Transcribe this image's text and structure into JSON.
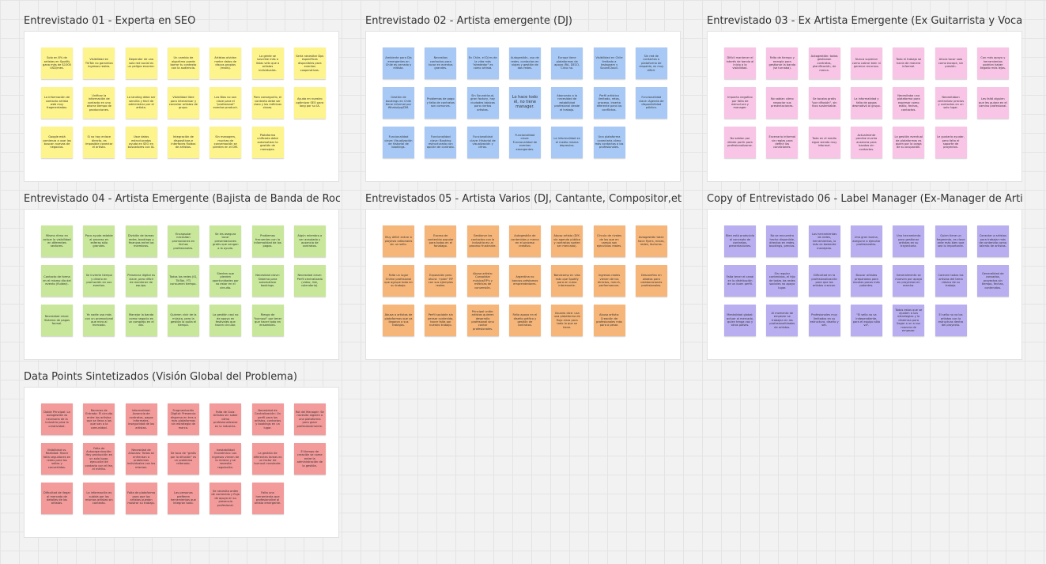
{
  "colors": {
    "yellow": "#fdf48d",
    "blue": "#a8c9f5",
    "pink": "#f8c5e6",
    "green": "#c8e79b",
    "orange": "#f6b67a",
    "purple": "#b9aef0",
    "red": "#f39a9a"
  },
  "frames": [
    {
      "title": "Entrevistado 01 - Experta en SEO",
      "color": "yellow",
      "notes": [
        "Solo en 8% de artistas en Spotify gana más de $1000 USD/mes.",
        "Visibilidad en TikTok no garantiza ingresos reales.",
        "Depender de una sola red social es un peligro enorme.",
        "Un cambio de algoritmo puede borrar tu contexto con la audiencia.",
        "Artistas olvidan meter datos de discos propios (mails).",
        "La gente se suscribe más a listas vets que a artistas individuales.",
        "Sería necesitar Dps específicos disponibles para eventos cooperativos.",
        "La información de contacto artista web muy fragmentados.",
        "Unificar la información de contacto en uno ahorra tiempo de producciones.",
        "La landing debe ser sencilla y fácil de administrar por el artista.",
        "Visibilidad libre para interactuar y conectar artistas de grupo.",
        "Las Bios no son clave para el \"profesional\" eventos producir.",
        "Para conseguirlo, el contexto debe ser claro y las métricas claras.",
        "Ayuda en nuestro optimizar SEO para long por su IA.",
        "Google está comienza a usar las buscan nuevas de negocios.",
        "Si no hay enlace directo, es imposible conectar el artista.",
        "Usar datos estructurados ayuda en SEO en buscadores con IA.",
        "Integración de dispositivos e interfaces fluidos de artistas.",
        "Sin managers, muchas de conversación se pierden en el DM.",
        "Plataforma unificada debe automatizar la gestión de mensajes."
      ]
    },
    {
      "title": "Entrevistado 02 - Artista emergente (DJ)",
      "color": "blue",
      "notes": [
        "Ambiente para Djs emergentes en Chile es cerrado y elitista.",
        "Necesitas contactos para tocar en eventos grandes.",
        "En Chile, el DJ es de la vida más \"alrededor\" es como artista.",
        "Autogestión, uso de redes, contactos en viajes y gestión de dos redes.",
        "Europa tiene plataformas de apoyo (RA, DECO, Circo no.",
        "Visibilidad en Chile limitada a Instagram y SoundCloud.",
        "Sin red de contactos o plataforma de respaldo, es muy difícil.",
        "Gestión de bookings en Chile tiene informal por WhatsApp/DM.",
        "Problemas de pago y falta de contratos son comunes.",
        "Sin Soundcloud, gran factory, hay ciudades básicas para ciertos artistas.",
        "Lo hace todo él, no tiene manager.",
        "Abonando a la necesidad de estabilidad profesional desde el trabajo.",
        "Perfil artístico limitado, retos, proceso, inserta diferente para los conflictos.",
        "Funcionalidad clave: Agenda de disponibilidad pública.",
        "Funcionalidad clave: Visualización de historial de bookings.",
        "Funcionalidad clave: Booking estructurado con opción de contrato.",
        "Funcionalidad clave: Historial de visualización y cifras.",
        "Funcionalidad clave: Funcionalidad de eventos emergentes.",
        "La informalidad en el medio misma depresiva.",
        "Una plataforma conectaría cómo más contactos a los profesionales."
      ]
    },
    {
      "title": "Entrevistado 03 - Ex Artista Emergente (Ex Guitarrista y Vocalista de Banda de Rock)",
      "color": "pink",
      "notes": [
        "Difícil mantener el interés de banda al inicio a la visibilidad.",
        "Falta de tiempo y energía para gestionar la banda (se turnaba).",
        "Autogestión: todos gestionan contratos, planificación, de marca.",
        "Nunca supieron como cobrar bien ni generar recursos.",
        "Todo el trabajo se hacía de manera informal.",
        "Ahora tocar solo como escape, sin presión.",
        "Con más apoyo y herramientas podrían haber llegado más lejos.",
        "Impacto negativo por falta de estructura y manager.",
        "No sabían cómo negociar sus presentaciones.",
        "Se tocaba gratis \"por difusión\", sin foco sustentable.",
        "La informalidad y falta de pagos desmotivó al grupo.",
        "Necesitaba una plataforma para expresar como estilo, fechas, contactos.",
        "Necesitaban centralizar precios y contactos en un solo lugar.",
        "Les faltó alguien que les guiara en el camino profesional.",
        "No sabían por dónde partir para profesionalizarse.",
        "Escenario informal sin reglas para definir las condiciones.",
        "Todo en el medio sigue siendo muy informal.",
        "Actualmente percibe mucha ausencia para bandas sin contactos.",
        "La gestión eventual de plataformas es quien por la carga de su ocupación.",
        "Le gustaría ayudar, pero falta el soporte de proyectos."
      ]
    },
    {
      "title": "Entrevistado 04 - Artista Emergente (Bajista de Banda de Rock)",
      "color": "green",
      "notes": [
        "Mismo ritmo en actuar la visibilidad en diferentes sectores.",
        "Poco ayuda estable al proceso en esferas sólo grandes.",
        "División de tareas: redes, bookings y finanzas entre los miembros.",
        "Encapsular necesitan promociones en fechas profesionales.",
        "Se les asegura tocar presentaciones gratis que vengan a la ayuda.",
        "Problemas frecuentes con la informalidad de los pagos.",
        "Algún miembro a ser aceptado y ausencia de contratos.",
        "Contacto de forma en el mismo día del evento (fluidez).",
        "Se invierte tiempo y dinero en promoción en sus eventos.",
        "Presencia digital es clave, pero difícil de mantener de equipo.",
        "Todos los redes (IG, TikTok, YT) consumen tiempo.",
        "Sienten que pierden oportunidades por no estar en el circuito.",
        "Necesidad clave: Sistema para automatizar bookings.",
        "Necesidad clave: Perfil centralizado (video, link, calendario).",
        "Necesidad clave: Sistema de pagos formal.",
        "Ya nadie usa más con un promocional que mira al mercado.",
        "Manejar la banda como negocio es un complejo en el día.",
        "Quieren vivir de la música, pero la gestión lo quita el tiempo.",
        "La gestión casi no de apoyo en festivales que hacen circular.",
        "Riesgo de \"burnout\" por tener que hacer todo en ensambles."
      ]
    },
    {
      "title": "Entrevistados 05 - Artista Varios (DJ, Cantante, Compositor,etc.)",
      "color": "orange",
      "notes": [
        "Muy difícil entrar a playlists editoriales sin un sello.",
        "Exceso de contenido popular para todos en el fanatago.",
        "Gestionar los contactos con la industria es un proceso frustrante.",
        "Autogestión de contenidos y marca en el proceso creativo.",
        "Abuso artista (DIY, vía agenda pública y contratos suelen ser mercado).",
        "Círculo de rivales de los que en campo son ejecutivos reales.",
        "Autogestión total: hace flyers, mixes, redes, facturas.",
        "Falta un lugar Online profesional que agrupe todo en su trabajo.",
        "Exposición pero ahora: +plan\" RP con sus ejemplos reales.",
        "Abusa artista: Consolidar música/EP's y métricas de conversión.",
        "Argentina no bancos préstamos emprendedores.",
        "Bandcamp en vías más que Spotify para en rubro interesante.",
        "Ingresos reales vienen de los directos, merch, performances.",
        "Desconfían en aliados para colaboraciones profesionales.",
        "Abusa a artistas de plataformas que ya llegaron a sus trabajos.",
        "Perfil sociable sin pensar contenido, hacer falta por nuestro trabajo.",
        "Principal unión: artistas quieren desarrollo profesional sino contar profesionales.",
        "Falta apoyo en el diseño gráfico y gestión de contratos.",
        "Usuario dice: usa una plataforma de flujo claro para todo lo que se tiene.",
        "Abusa artista: Creación de profesionales más para a pesar."
      ]
    },
    {
      "title": "Copy of Entrevistado 06 - Label Manager (Ex-Manager de Artistas Emergentes)",
      "color": "purple",
      "notes": [
        "Bien está producido al concepto de contratos, presentaciones.",
        "No se encuentra hecho disponible, directos en redes, bookings, precios.",
        "Los herramientas de redes, herramientas, lo más es bastante manejado.",
        "Una gran buena, asegurar a ejecutar profesionales.",
        "Una herramienta para gestionar artistas en su trayectoria.",
        "Quien tiene un fragmento, es clave ante más bien que sea lo importante.",
        "Conectar a artistas para trabajar más de contenido como talento de artistas.",
        "Falta tener el canal en la distribución de un buen perfil.",
        "Sin regular contenidos, el hijo de todas las redes sociales no apoya lugar.",
        "Dificultad en la profesionalización para que los artistas crezcan.",
        "Buscar artistas preparados para escalas pocos más potentes.",
        "Generalmente se mueven por apoyo en proyectos en marcha.",
        "Carecen todos los artistas del tema clásico de su trabajo.",
        "Generalidad de cansados, proyectos sin tiempo, fechas, contenidos.",
        "Mentalidad global: actuar al mercado, quien tenga voz y otros países.",
        "Al momento de empezar se trabajan en las profesionalidades de artistas.",
        "Profesionales muy limitados en su estructura, diseño y set.",
        "\"El sello no va independiente, para el equipo sólo va\".",
        "Todos estos que se ajusten a sus estrategias y la dinámica para llegar a un a sus manera de empezar.",
        "El sello no va los artistas con la estructura dentro del proyecto."
      ]
    },
    {
      "title": "Data Points Sintetizados (Visión Global del Problema)",
      "color": "red",
      "notes": [
        "Doble Principal: La autogestión es necesaria de la industria para la creatividad.",
        "Barreras de Entrada: El circuito entre los artistas que se lleva a los que van a la comunidad.",
        "Informalidad: Ausencia de contratos, pagos informales, inseguridad de los artistas.",
        "Fragmentación Digital: Presencia dispersa en tres o más plataformas sin estrategia de marca.",
        "Falta de Guía: Artistas sin saber cómo profesionalizarse en la industria.",
        "Necesidad de Centralización: Un perfil para los artistas, contactos y bookings en un lugar.",
        "Rol del Manager: Se necesita alguien o una plataforma para guiar profesionalmente.",
        "Visibilidad vs. Realidad: Hacer falta seguidores en redes para los sellos y convertidos.",
        "Falta de Autoorganización: Hay producción en un solo lugar, ejecución de contacto con el fan, el mérito.",
        "Necesidad de Alianzas: Todos se enfrentan a problemas individuales con los mismos.",
        "Se toca de \"gratis por la difusión\" es un problema reiterado.",
        "Inestabilidad Económica: Los ingresos vienen de la música y se necesita regulación.",
        "La gestión de diferentes tareas es un factor de burnout constante.",
        "El tiempo de creación se come entre la administración de la gestión.",
        "Dificultad de llegar al mercado de detalles de los artistas.",
        "La información es subida por los mismos artistas sin contexto.",
        "Falta de plataforma para que los artistas puedan mostrar su trabajo.",
        "Las personas prefieren herramientas que integran todo.",
        "Se necesita orden de contenido y flujo de apoyo en su presencia profesional.",
        "Falta una herramienta que profesionalice al artista emergente."
      ]
    }
  ]
}
